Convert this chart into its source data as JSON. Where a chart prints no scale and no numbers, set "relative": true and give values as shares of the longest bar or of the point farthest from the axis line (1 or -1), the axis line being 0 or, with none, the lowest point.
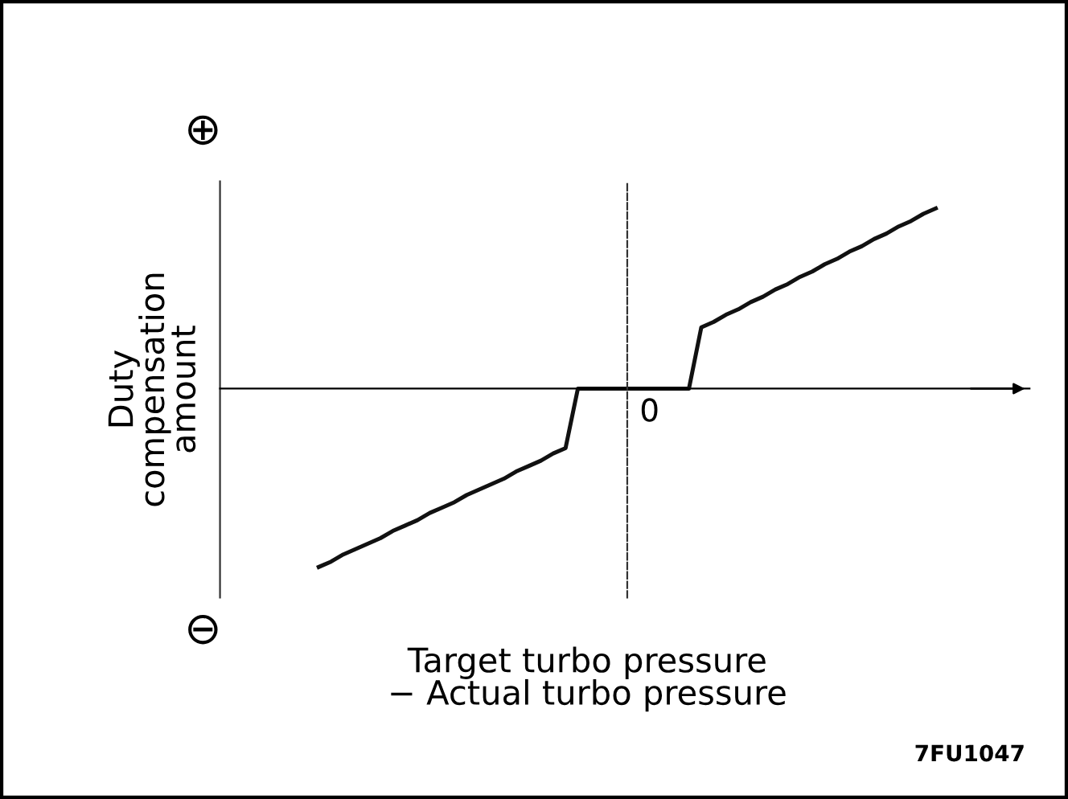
{
  "chart_data": {
    "type": "line",
    "relative": true,
    "xlabel": "Target turbo pressure\n− Actual turbo pressure",
    "ylabel": "Duty\ncompensation\namount",
    "categories": [
      null,
      null,
      null,
      null,
      null,
      null,
      null,
      null,
      null,
      null,
      null,
      null,
      null,
      null,
      null,
      null,
      null,
      null,
      null,
      null,
      null,
      null,
      null,
      null,
      null,
      null,
      null,
      null,
      null,
      null,
      null,
      null,
      null,
      null,
      null,
      null,
      null,
      null,
      null,
      null,
      null,
      null,
      null,
      null,
      null,
      null,
      null,
      null,
      null,
      null,
      null
    ],
    "series": [
      {
        "color": "#111111",
        "values": [
          -0.99,
          -0.96,
          -0.92,
          -0.89,
          -0.86,
          -0.83,
          -0.79,
          -0.76,
          -0.73,
          -0.69,
          -0.66,
          -0.63,
          -0.59,
          -0.56,
          -0.53,
          -0.5,
          -0.46,
          -0.43,
          -0.4,
          -0.36,
          -0.33,
          0,
          0,
          0,
          0,
          0,
          0,
          0,
          0,
          0,
          0,
          0.34,
          0.37,
          0.41,
          0.44,
          0.48,
          0.51,
          0.55,
          0.58,
          0.62,
          0.65,
          0.69,
          0.72,
          0.76,
          0.79,
          0.83,
          0.86,
          0.9,
          0.93,
          0.97,
          1
        ]
      }
    ],
    "annotations": [
      "⊕",
      "⊖",
      "0",
      "7FU1047"
    ],
    "grid": false,
    "legend": false,
    "marker": "none",
    "line_style": "solid"
  }
}
